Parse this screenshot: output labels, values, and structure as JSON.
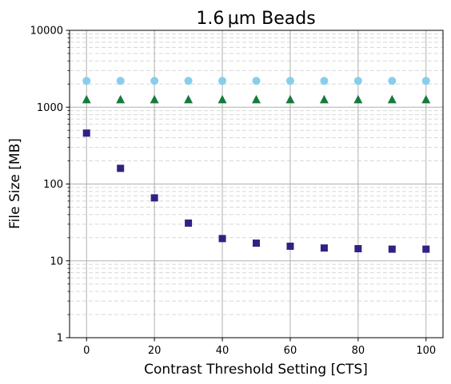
{
  "chart_data": {
    "type": "scatter",
    "title": "1.6 µm Beads",
    "xlabel": "Contrast Threshold Setting [CTS]",
    "ylabel": "File Size [MB]",
    "xlim": [
      -5,
      105
    ],
    "ylim": [
      1,
      10000
    ],
    "yscale": "log",
    "x_ticks": [
      0,
      20,
      40,
      60,
      80,
      100
    ],
    "x_tick_labels": [
      "0",
      "20",
      "40",
      "60",
      "80",
      "100"
    ],
    "y_ticks": [
      1,
      10,
      100,
      1000,
      10000
    ],
    "y_tick_labels": [
      "1",
      "10",
      "100",
      "1000",
      "10000"
    ],
    "grid": true,
    "legend": "none",
    "x": [
      0,
      10,
      20,
      30,
      40,
      50,
      60,
      70,
      80,
      90,
      100
    ],
    "series": [
      {
        "marker": "circle",
        "color": "#87ceeb",
        "values": [
          2200,
          2200,
          2200,
          2200,
          2200,
          2200,
          2200,
          2200,
          2200,
          2200,
          2200
        ]
      },
      {
        "marker": "triangle",
        "color": "#157a3a",
        "values": [
          1250,
          1250,
          1250,
          1250,
          1250,
          1250,
          1250,
          1250,
          1250,
          1250,
          1250
        ]
      },
      {
        "marker": "square",
        "color": "#2e2383",
        "values": [
          460,
          160,
          66,
          31,
          19.5,
          17,
          15.5,
          14.7,
          14.4,
          14.2,
          14.2
        ]
      }
    ]
  }
}
